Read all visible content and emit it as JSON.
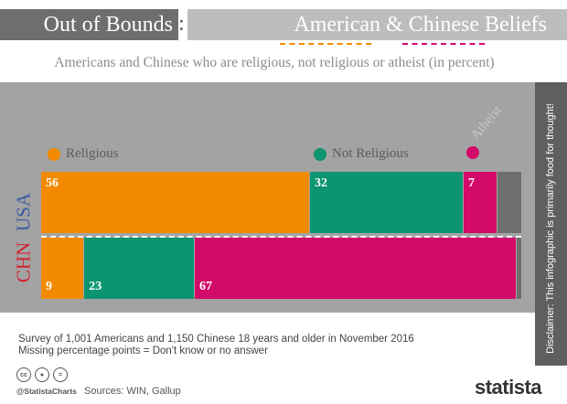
{
  "header": {
    "title_left": "Out of Bounds",
    "title_colon": ":",
    "title_right": "American & Chinese Beliefs",
    "subtitle": "Americans and Chinese who are religious, not religious or atheist (in percent)"
  },
  "colors": {
    "religious": "#f28a00",
    "not_religious": "#0d9470",
    "atheist": "#d40a6a",
    "remainder": "#6e6e6e"
  },
  "chart_data": {
    "type": "bar",
    "stacked": true,
    "orientation": "horizontal",
    "title": "Americans and Chinese who are religious, not religious or atheist (in percent)",
    "categories": [
      "USA",
      "CHN"
    ],
    "series": [
      {
        "name": "Religious",
        "key": "religious",
        "values": [
          56,
          9
        ]
      },
      {
        "name": "Not Religious",
        "key": "not_religious",
        "values": [
          32,
          23
        ]
      },
      {
        "name": "Atheist",
        "key": "atheist",
        "values": [
          7,
          67
        ]
      }
    ],
    "data_labels": [
      [
        "56",
        "32",
        "7"
      ],
      [
        "9",
        "23",
        "67"
      ]
    ],
    "xlim": [
      0,
      100
    ],
    "legend_position": "top"
  },
  "legend": {
    "religious": "Religious",
    "not_religious": "Not Religious",
    "atheist": "Atheist"
  },
  "countries": {
    "usa": "USA",
    "chn": "CHN"
  },
  "footer": {
    "note_line1": "Survey of 1,001 Americans and 1,150 Chinese 18 years and older in November 2016",
    "note_line2": "Missing percentage points = Don't know or no answer",
    "handle": "@StatistaCharts",
    "sources": "Sources: WIN, Gallup",
    "brand": "statista",
    "license_icons": [
      "cc-icon",
      "by-icon",
      "nd-icon"
    ]
  },
  "disclaimer": "Disclaimer:  This infographic is primarily food for thought!"
}
